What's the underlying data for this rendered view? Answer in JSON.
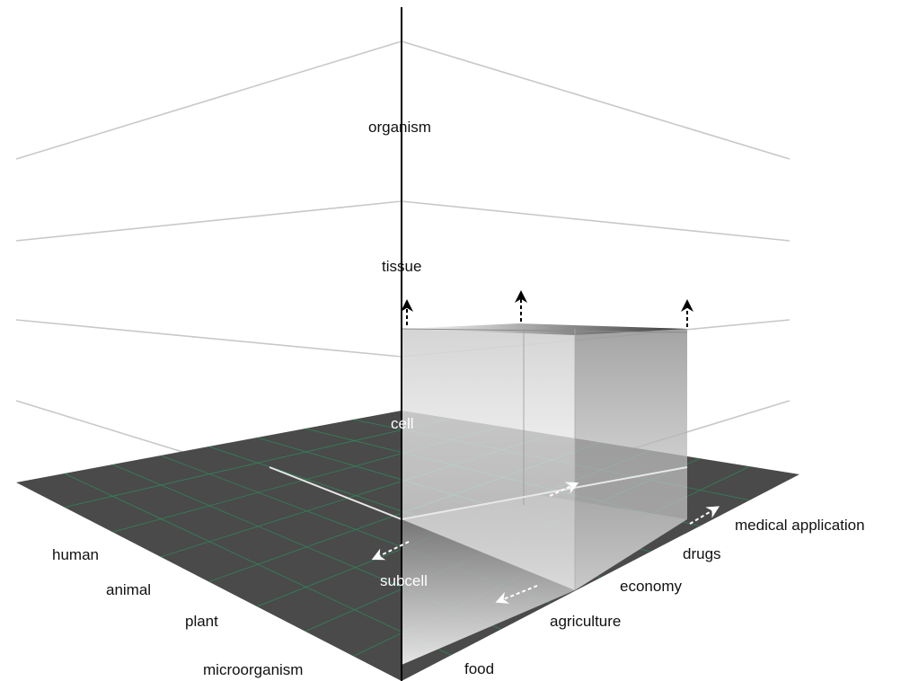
{
  "levels": {
    "organism": "organism",
    "tissue": "tissue",
    "cell": "cell",
    "subcell": "subcell"
  },
  "organisms": {
    "human": "human",
    "animal": "animal",
    "plant": "plant",
    "microorganism": "microorganism"
  },
  "applications": {
    "medical": "medical application",
    "drugs": "drugs",
    "economy": "economy",
    "agriculture": "agriculture",
    "food": "food"
  },
  "colors": {
    "floor": "#4a4a4a",
    "floor_grid": "#2e8a5c",
    "guide_lines": "#c8c8c8",
    "axis": "#000000"
  }
}
